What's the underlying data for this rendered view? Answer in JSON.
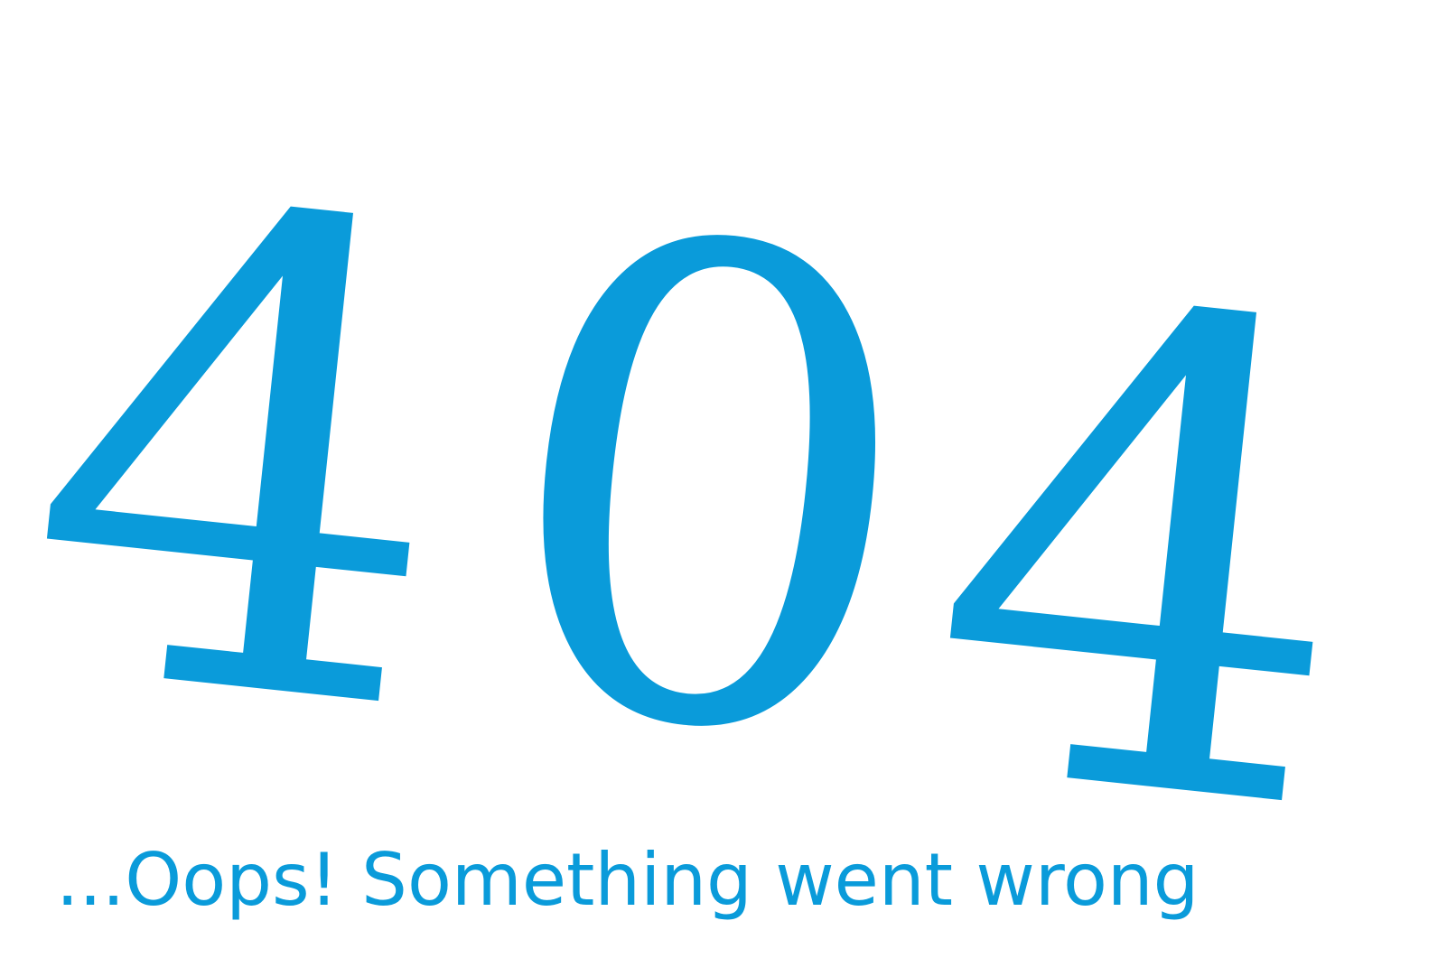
{
  "error_code": {
    "digits": [
      "4",
      "0",
      "4"
    ]
  },
  "message": "...Oops! Something went wrong",
  "colors": {
    "accent": "#0a9bda",
    "background": "#ffffff"
  }
}
